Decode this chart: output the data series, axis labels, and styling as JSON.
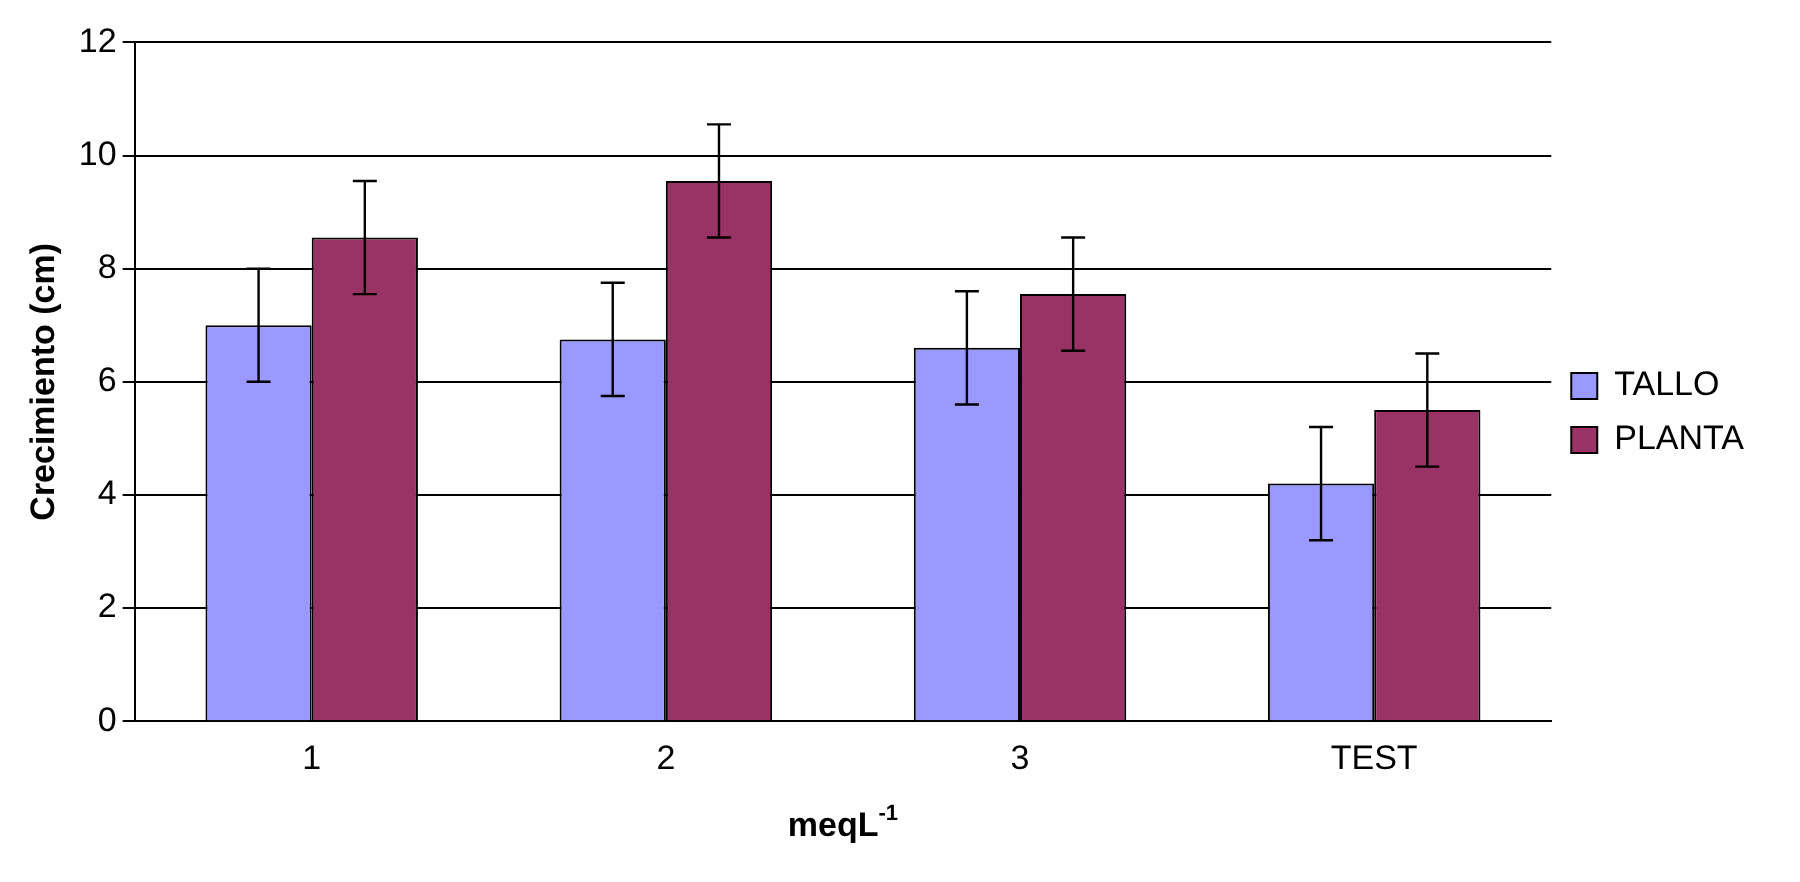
{
  "chart_data": {
    "type": "bar",
    "xlabel": "meqL$^{-1}$",
    "ylabel": "Crecimiento (cm)",
    "categories": [
      "1",
      "2",
      "3",
      "TEST"
    ],
    "series": [
      {
        "name": "TALLO",
        "color": "#9999ff",
        "values": [
          7.0,
          6.75,
          6.6,
          4.2
        ],
        "errors": [
          1,
          1,
          1,
          1
        ]
      },
      {
        "name": "PLANTA",
        "color": "#993366",
        "values": [
          8.55,
          9.55,
          7.55,
          5.5
        ],
        "errors": [
          1,
          1,
          1,
          1
        ]
      }
    ],
    "ylim": [
      0,
      12
    ],
    "yticks": [
      0,
      2,
      4,
      6,
      8,
      10,
      12
    ],
    "grid": "y",
    "legend": "right"
  }
}
